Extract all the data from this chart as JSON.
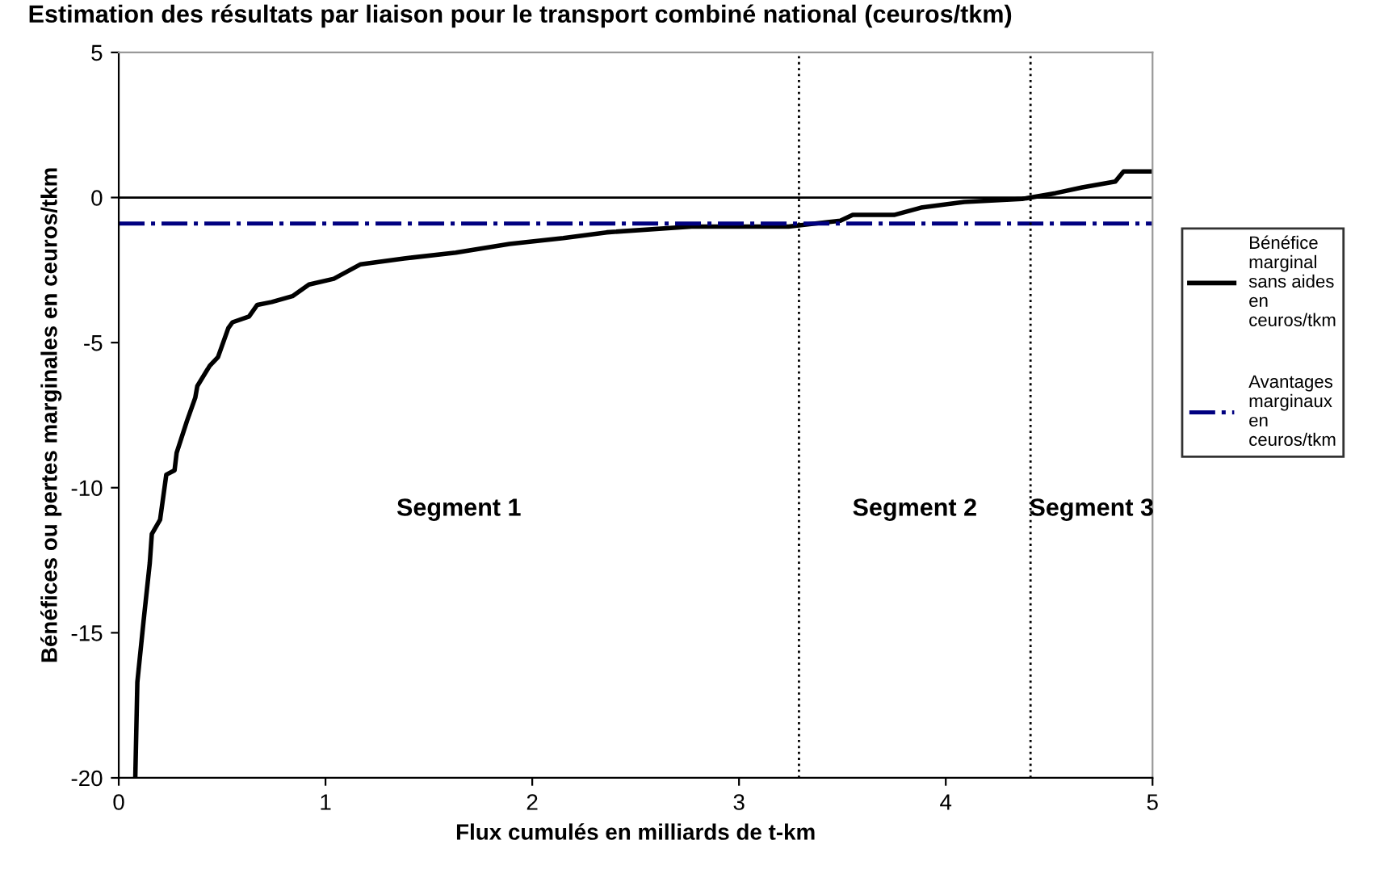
{
  "chart_data": {
    "type": "line",
    "title": "Estimation des résultats par liaison pour le transport combiné national (ceuros/tkm)",
    "xlabel": "Flux cumulés en milliards de t-km",
    "ylabel": "Bénéfices ou pertes marginales en ceuros/tkm",
    "xlim": [
      0,
      5
    ],
    "xticks": [
      0,
      1,
      2,
      3,
      4,
      5
    ],
    "ylim": [
      -20,
      5
    ],
    "yticks": [
      -20,
      -15,
      -10,
      -5,
      0,
      5
    ],
    "grid": false,
    "legend": "right",
    "series": [
      {
        "name": "Bénéfice marginal sans aides en ceuros/tkm",
        "color": "#000000",
        "line_style": "solid",
        "x": [
          0.08,
          0.09,
          0.12,
          0.15,
          0.16,
          0.2,
          0.23,
          0.27,
          0.28,
          0.33,
          0.37,
          0.38,
          0.44,
          0.48,
          0.53,
          0.55,
          0.63,
          0.67,
          0.74,
          0.84,
          0.92,
          1.04,
          1.17,
          1.38,
          1.63,
          1.89,
          2.15,
          2.36,
          2.77,
          3.24,
          3.49,
          3.55,
          3.75,
          3.88,
          4.09,
          4.37,
          4.53,
          4.66,
          4.82,
          4.86,
          5.0
        ],
        "values": [
          -20,
          -16.7,
          -14.6,
          -12.6,
          -11.6,
          -11.1,
          -9.55,
          -9.4,
          -8.8,
          -7.7,
          -6.9,
          -6.5,
          -5.8,
          -5.5,
          -4.5,
          -4.3,
          -4.1,
          -3.7,
          -3.6,
          -3.4,
          -3.0,
          -2.8,
          -2.3,
          -2.1,
          -1.9,
          -1.6,
          -1.4,
          -1.2,
          -1.0,
          -1.0,
          -0.8,
          -0.6,
          -0.6,
          -0.35,
          -0.15,
          -0.05,
          0.15,
          0.35,
          0.55,
          0.9,
          0.9
        ]
      },
      {
        "name": "Avantages marginaux en ceuros/tkm",
        "color": "#000080",
        "line_style": "dashdot",
        "x": [
          0,
          5
        ],
        "values": [
          -0.9,
          -0.9
        ]
      }
    ],
    "ref_lines": [
      {
        "axis": "y",
        "value": 0,
        "color": "#000000",
        "line_style": "solid"
      },
      {
        "axis": "x",
        "value": 3.29,
        "color": "#000000",
        "line_style": "dotted"
      },
      {
        "axis": "x",
        "value": 4.41,
        "color": "#000000",
        "line_style": "dotted"
      }
    ],
    "annotations": [
      "Segment 1",
      "Segment 2",
      "Segment 3"
    ]
  }
}
